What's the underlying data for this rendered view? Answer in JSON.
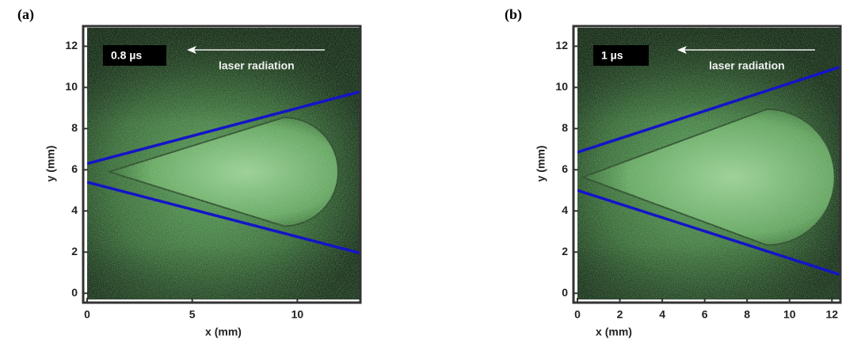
{
  "chart_data": [
    {
      "type": "line",
      "panel_label": "(a)",
      "timestamp": "0.8 µs",
      "annotation": "laser radiation",
      "xlabel": "x (mm)",
      "ylabel": "y (mm)",
      "x": [
        0,
        13
      ],
      "series": [
        {
          "color": "#1414c8",
          "values": [
            6.3,
            9.8
          ]
        },
        {
          "color": "#1414c8",
          "values": [
            5.4,
            1.95
          ]
        }
      ],
      "xlim": [
        0,
        13
      ],
      "ylim": [
        -0.3,
        12.9
      ],
      "xticks": [
        0,
        5,
        10
      ],
      "yticks": [
        0,
        2,
        4,
        6,
        8,
        10,
        12
      ]
    },
    {
      "type": "line",
      "panel_label": "(b)",
      "timestamp": "1 µs",
      "annotation": "laser radiation",
      "xlabel": "x (mm)",
      "ylabel": "y (mm)",
      "x": [
        0,
        12.4
      ],
      "series": [
        {
          "color": "#1414c8",
          "values": [
            6.85,
            11.0
          ]
        },
        {
          "color": "#1414c8",
          "values": [
            5.0,
            0.9
          ]
        }
      ],
      "xlim": [
        0,
        12.4
      ],
      "ylim": [
        -0.3,
        12.9
      ],
      "xticks": [
        0,
        2,
        4,
        6,
        8,
        10,
        12
      ],
      "yticks": [
        0,
        2,
        4,
        6,
        8,
        10,
        12
      ]
    }
  ]
}
